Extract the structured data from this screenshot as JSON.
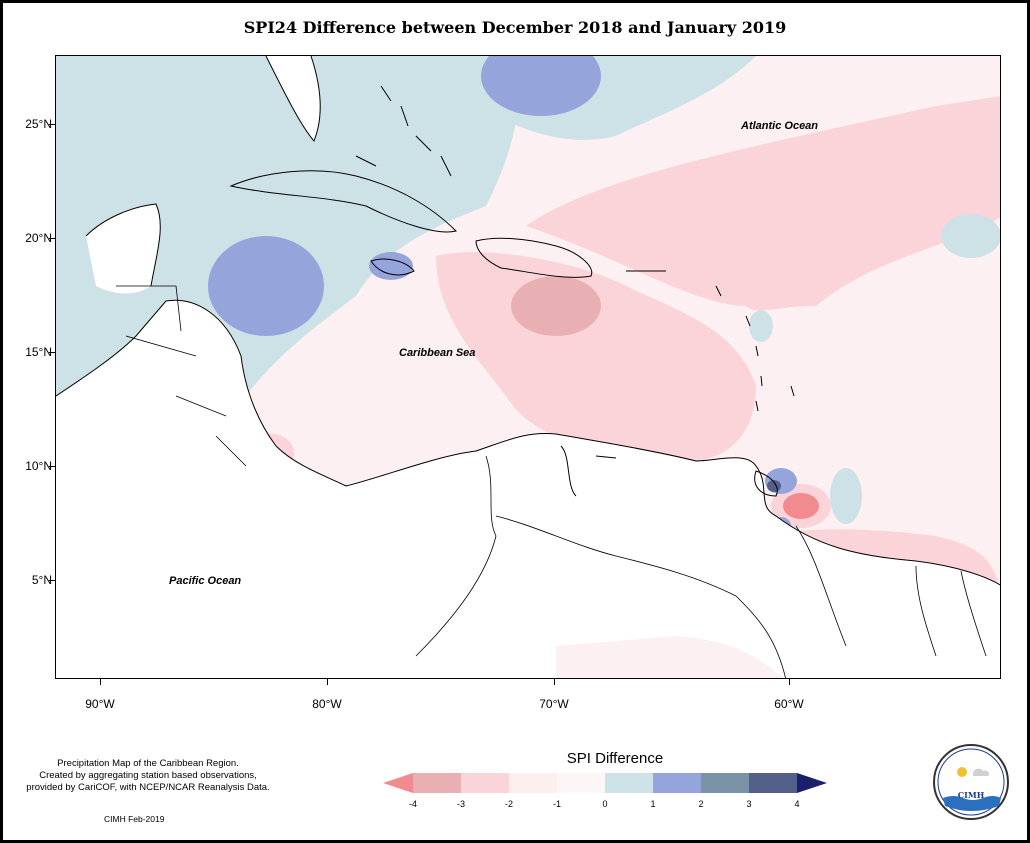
{
  "title": "SPI24 Difference between December 2018 and January 2019",
  "map": {
    "labels": {
      "atlantic": "Atlantic Ocean",
      "caribbean": "Caribbean Sea",
      "pacific": "Pacific Ocean"
    },
    "lat_ticks": [
      "25°N",
      "20°N",
      "15°N",
      "10°N",
      "5°N"
    ],
    "lon_ticks": [
      "90°W",
      "80°W",
      "70°W",
      "60°W"
    ]
  },
  "legend": {
    "title": "SPI Difference",
    "ticks": [
      "-4",
      "-3",
      "-2",
      "-1",
      "0",
      "1",
      "2",
      "3",
      "4"
    ],
    "colors": {
      "minus4": "#f28b8f",
      "minus3": "#e9b0b3",
      "minus2": "#fbd4d9",
      "minus1": "#fdeef0",
      "plus0": "#cde2e7",
      "plus1": "#95a5dc",
      "plus2": "#7a93a6",
      "plus3": "#54608a",
      "plus4": "#1a1f6b"
    }
  },
  "footer": {
    "note_lines": [
      "Precipitation Map of the Caribbean Region.",
      "Created by aggregating station based observations,",
      "provided by CariCOF, with NCEP/NCAR Reanalysis Data."
    ],
    "credit": "CIMH Feb-2019"
  },
  "logo": {
    "text": "CIMH"
  }
}
